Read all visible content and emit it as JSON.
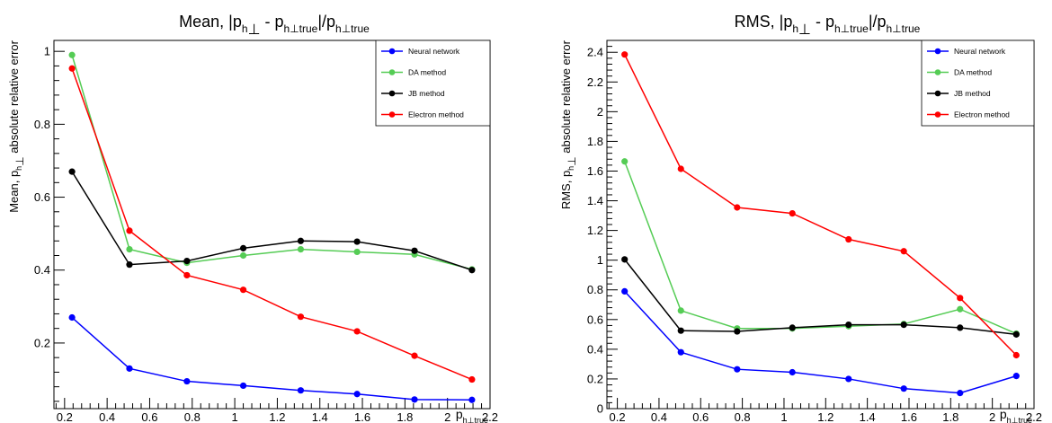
{
  "chart_data": [
    {
      "type": "line",
      "title": "Mean, |p_h⊥ - p_h⊥true|/p_h⊥true",
      "title_parts": {
        "a": "Mean, |p",
        "b": "h",
        "c": "⊥",
        "d": " - p",
        "e": "h⊥true",
        "f": "|/p",
        "g": "h⊥true"
      },
      "ylabel": "Mean, p_h⊥ absolute relative error",
      "ylabel_parts": {
        "a": "Mean, p",
        "b": "h",
        "c": "⊥",
        "d": " absolute relative error"
      },
      "xlabel": "p_h⊥true",
      "xlabel_parts": {
        "a": "p",
        "b": "h⊥true"
      },
      "xlim": [
        0.15,
        2.2
      ],
      "ylim": [
        0.02,
        1.03
      ],
      "xticks": [
        "0.2",
        "0.4",
        "0.6",
        "0.8",
        "1",
        "1.2",
        "1.4",
        "1.6",
        "1.8",
        "2",
        "2.2"
      ],
      "xtick_values": [
        0.2,
        0.4,
        0.6,
        0.8,
        1.0,
        1.2,
        1.4,
        1.6,
        1.8,
        2.0,
        2.2
      ],
      "yticks": [
        "0.2",
        "0.4",
        "0.6",
        "0.8",
        "1"
      ],
      "ytick_values": [
        0.2,
        0.4,
        0.6,
        0.8,
        1.0
      ],
      "x": [
        0.235,
        0.505,
        0.775,
        1.04,
        1.31,
        1.575,
        1.845,
        2.115
      ],
      "series": [
        {
          "name": "Neural network",
          "color": "#0000ff",
          "values": [
            0.27,
            0.13,
            0.095,
            0.083,
            0.07,
            0.06,
            0.045,
            0.044
          ]
        },
        {
          "name": "DA method",
          "color": "#55cc55",
          "values": [
            0.99,
            0.457,
            0.42,
            0.44,
            0.457,
            0.45,
            0.443,
            0.402
          ]
        },
        {
          "name": "JB method",
          "color": "#000000",
          "values": [
            0.67,
            0.415,
            0.425,
            0.46,
            0.48,
            0.478,
            0.453,
            0.4
          ]
        },
        {
          "name": "Electron method",
          "color": "#ff0000",
          "values": [
            0.953,
            0.508,
            0.386,
            0.346,
            0.272,
            0.232,
            0.165,
            0.1
          ]
        }
      ],
      "legend": "top-right",
      "grid": false
    },
    {
      "type": "line",
      "title": "RMS, |p_h⊥ - p_h⊥true|/p_h⊥true",
      "title_parts": {
        "a": "RMS, |p",
        "b": "h",
        "c": "⊥",
        "d": " - p",
        "e": "h⊥true",
        "f": "|/p",
        "g": "h⊥true"
      },
      "ylabel": "RMS, p_h⊥ absolute relative error",
      "ylabel_parts": {
        "a": "RMS, p",
        "b": "h",
        "c": "⊥",
        "d": " absolute relative error"
      },
      "xlabel": "p_h⊥true",
      "xlabel_parts": {
        "a": "p",
        "b": "h⊥true"
      },
      "xlim": [
        0.15,
        2.2
      ],
      "ylim": [
        0.0,
        2.48
      ],
      "xticks": [
        "0.2",
        "0.4",
        "0.6",
        "0.8",
        "1",
        "1.2",
        "1.4",
        "1.6",
        "1.8",
        "2",
        "2.2"
      ],
      "xtick_values": [
        0.2,
        0.4,
        0.6,
        0.8,
        1.0,
        1.2,
        1.4,
        1.6,
        1.8,
        2.0,
        2.2
      ],
      "yticks": [
        "0",
        "0.2",
        "0.4",
        "0.6",
        "0.8",
        "1",
        "1.2",
        "1.4",
        "1.6",
        "1.8",
        "2",
        "2.2",
        "2.4"
      ],
      "ytick_values": [
        0,
        0.2,
        0.4,
        0.6,
        0.8,
        1.0,
        1.2,
        1.4,
        1.6,
        1.8,
        2.0,
        2.2,
        2.4
      ],
      "x": [
        0.235,
        0.505,
        0.775,
        1.04,
        1.31,
        1.575,
        1.845,
        2.115
      ],
      "series": [
        {
          "name": "Neural network",
          "color": "#0000ff",
          "values": [
            0.79,
            0.38,
            0.265,
            0.245,
            0.2,
            0.135,
            0.105,
            0.22
          ]
        },
        {
          "name": "DA method",
          "color": "#55cc55",
          "values": [
            1.665,
            0.66,
            0.54,
            0.54,
            0.555,
            0.57,
            0.67,
            0.505
          ]
        },
        {
          "name": "JB method",
          "color": "#000000",
          "values": [
            1.005,
            0.525,
            0.52,
            0.545,
            0.565,
            0.565,
            0.545,
            0.5
          ]
        },
        {
          "name": "Electron method",
          "color": "#ff0000",
          "values": [
            2.385,
            1.615,
            1.355,
            1.315,
            1.14,
            1.06,
            0.745,
            0.36
          ]
        }
      ],
      "legend": "top-right",
      "grid": false
    }
  ]
}
